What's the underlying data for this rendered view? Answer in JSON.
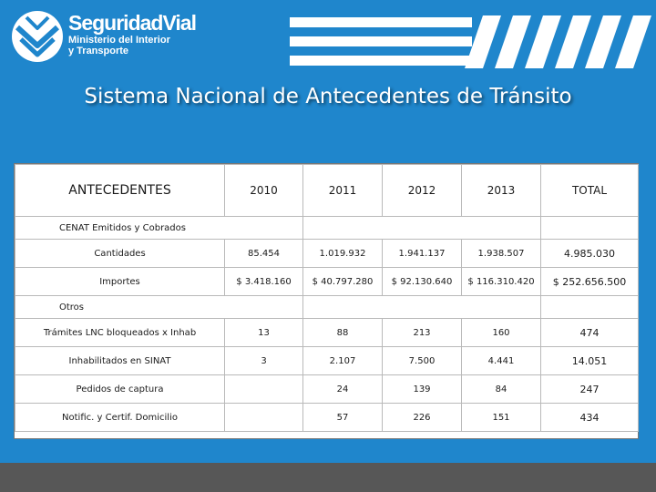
{
  "header": {
    "brand_name": "SeguridadVial",
    "brand_sub": "Ministerio del Interior\ny Transporte",
    "logo_icon": "seguridad-vial-logo-icon",
    "stripes_icon": "diagonal-stripes-decoration"
  },
  "title": "Sistema Nacional de Antecedentes de Tránsito",
  "table": {
    "header": {
      "label": "ANTECEDENTES",
      "years": [
        "2010",
        "2011",
        "2012",
        "2013"
      ],
      "total": "TOTAL"
    },
    "sections": [
      {
        "label": "CENAT Emitidos y Cobrados",
        "rows": [
          {
            "label": "Cantidades",
            "values": [
              "85.454",
              "1.019.932",
              "1.941.137",
              "1.938.507"
            ],
            "total": "4.985.030"
          },
          {
            "label": "Importes",
            "values": [
              "$ 3.418.160",
              "$ 40.797.280",
              "$ 92.130.640",
              "$ 116.310.420"
            ],
            "total": "$ 252.656.500"
          }
        ]
      },
      {
        "label": "Otros",
        "rows": [
          {
            "label": "Trámites LNC bloqueados x Inhab",
            "values": [
              "13",
              "88",
              "213",
              "160"
            ],
            "total": "474"
          },
          {
            "label": "Inhabilitados en SINAT",
            "values": [
              "3",
              "2.107",
              "7.500",
              "4.441"
            ],
            "total": "14.051"
          },
          {
            "label": "Pedidos de captura",
            "values": [
              "",
              "24",
              "139",
              "84"
            ],
            "total": "247"
          },
          {
            "label": "Notific. y Certif. Domicilio",
            "values": [
              "",
              "57",
              "226",
              "151"
            ],
            "total": "434"
          }
        ]
      }
    ]
  },
  "colors": {
    "background": "#1f86cc",
    "sheet": "#ffffff",
    "bottom_bar": "#575757"
  }
}
